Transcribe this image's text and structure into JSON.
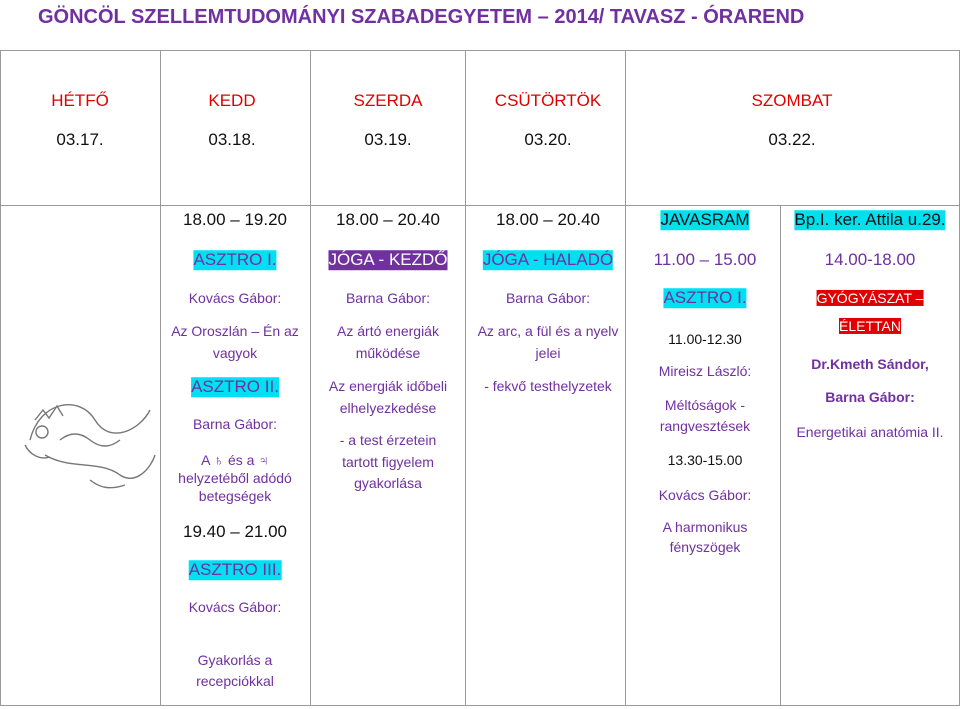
{
  "header": {
    "title": "GÖNCÖL SZELLEMTUDOMÁNYI SZABADEGYETEM – 2014/ TAVASZ - ÓRAREND"
  },
  "days": [
    {
      "name": "HÉTFŐ",
      "date": "03.17."
    },
    {
      "name": "KEDD",
      "date": "03.18."
    },
    {
      "name": "SZERDA",
      "date": "03.19."
    },
    {
      "name": "CSÜTÖRTÖK",
      "date": "03.20."
    },
    {
      "name": "SZOMBAT",
      "date": "03.22."
    }
  ],
  "columns": [
    [
      "18.00 – 19.20",
      "ASZTRO I.",
      "Kovács Gábor:",
      "Az Oroszlán – Én az",
      "vagyok",
      "ASZTRO II.",
      "Barna Gábor:",
      "A ♄ és a ♃",
      "helyzetéből adódó",
      "betegségek",
      "19.40 – 21.00",
      "ASZTRO III.",
      "Kovács Gábor:",
      "Gyakorlás a",
      "recepciókkal"
    ],
    [
      "18.00 – 20.40",
      "JÓGA - KEZDŐ",
      "Barna Gábor:",
      "Az ártó energiák",
      "működése",
      "Az energiák időbeli",
      "elhelyezkedése",
      "-     a test érzetein",
      "tartott figyelem",
      "gyakorlása"
    ],
    [
      "18.00 – 20.40",
      "JÓGA - HALADÓ",
      "Barna Gábor:",
      "Az arc, a fül és a nyelv",
      "jelei",
      "- fekvő testhelyzetek"
    ],
    [
      "JAVASRAM",
      "11.00 – 15.00",
      "ASZTRO I.",
      "11.00-12.30",
      "Mireisz László:",
      "Méltóságok -",
      "rangvesztések",
      "13.30-15.00",
      "Kovács Gábor:",
      "A harmonikus",
      "fényszögek"
    ],
    [
      "Bp.I. ker. Attila u.29.",
      "14.00-18.00",
      "GYÓGYÁSZAT –",
      "ÉLETTAN",
      "Dr.Kmeth Sándor,",
      "Barna Gábor:",
      "Energetikai anatómia II."
    ]
  ]
}
